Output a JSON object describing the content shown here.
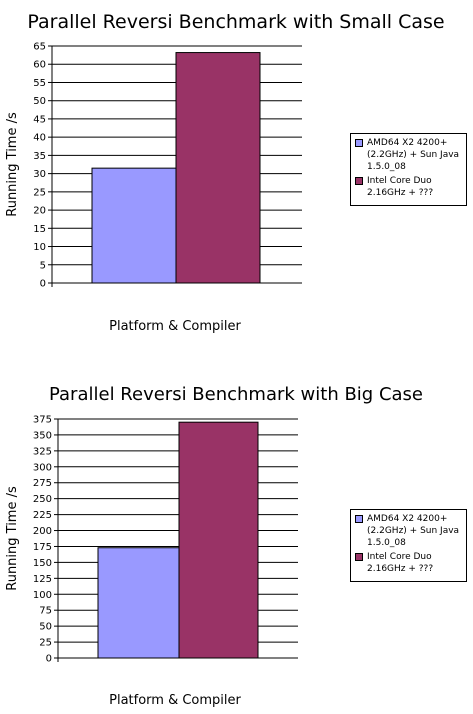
{
  "chart_data": [
    {
      "type": "bar",
      "title": "Parallel Reversi Benchmark with Small Case",
      "xlabel": "Platform & Compiler",
      "ylabel": "Running Time /s",
      "ylim": [
        0,
        65
      ],
      "yticks": [
        0,
        5,
        10,
        15,
        20,
        25,
        30,
        35,
        40,
        45,
        50,
        55,
        60,
        65
      ],
      "grid": true,
      "legend_position": "right",
      "series": [
        {
          "name": "AMD64 X2 4200+ (2.2GHz) + Sun Java 1.5.0_08",
          "values": [
            31.5
          ],
          "color": "#9999ff"
        },
        {
          "name": "Intel Core Duo 2.16GHz + ???",
          "values": [
            63.2
          ],
          "color": "#993366"
        }
      ]
    },
    {
      "type": "bar",
      "title": "Parallel Reversi Benchmark with Big Case",
      "xlabel": "Platform & Compiler",
      "ylabel": "Running Time /s",
      "ylim": [
        0,
        375
      ],
      "yticks": [
        0,
        25,
        50,
        75,
        100,
        125,
        150,
        175,
        200,
        225,
        250,
        275,
        300,
        325,
        350,
        375
      ],
      "grid": true,
      "legend_position": "right",
      "series": [
        {
          "name": "AMD64 X2 4200+ (2.2GHz) + Sun Java 1.5.0_08",
          "values": [
            173
          ],
          "color": "#9999ff"
        },
        {
          "name": "Intel Core Duo 2.16GHz + ???",
          "values": [
            370
          ],
          "color": "#993366"
        }
      ]
    }
  ]
}
